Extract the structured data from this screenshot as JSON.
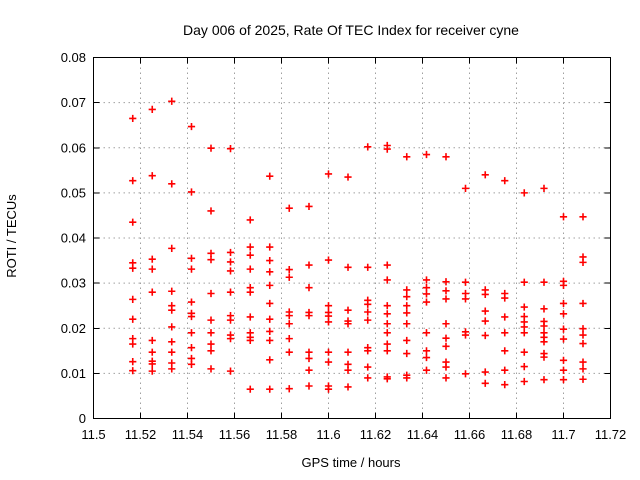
{
  "page": {
    "background": "#ffffff"
  },
  "chart_data": {
    "type": "scatter",
    "title": "Day 006 of 2025, Rate Of TEC Index for receiver cyne",
    "xlabel": "GPS time / hours",
    "ylabel": "ROTI / TECUs",
    "xlim": [
      11.5,
      11.72
    ],
    "ylim": [
      0,
      0.08
    ],
    "xticks": [
      11.5,
      11.52,
      11.54,
      11.56,
      11.58,
      11.6,
      11.62,
      11.64,
      11.66,
      11.68,
      11.7,
      11.72
    ],
    "xtick_labels": [
      "11.5",
      "11.52",
      "11.54",
      "11.56",
      "11.58",
      "11.6",
      "11.62",
      "11.64",
      "11.66",
      "11.68",
      "11.7",
      "11.72"
    ],
    "yticks": [
      0,
      0.01,
      0.02,
      0.03,
      0.04,
      0.05,
      0.06,
      0.07,
      0.08
    ],
    "ytick_labels": [
      "0",
      "0.01",
      "0.02",
      "0.03",
      "0.04",
      "0.05",
      "0.06",
      "0.07",
      "0.08"
    ],
    "grid": true,
    "legend": "none",
    "marker": "plus",
    "colors": {
      "marker": "#ff0000",
      "grid": "#a0a0a0",
      "axis": "#000000",
      "text": "#000000",
      "background": "#ffffff"
    },
    "series": [
      {
        "name": "ROTI",
        "points": [
          [
            11.5167,
            0.0665
          ],
          [
            11.5167,
            0.0527
          ],
          [
            11.5167,
            0.0435
          ],
          [
            11.5167,
            0.0345
          ],
          [
            11.5167,
            0.0333
          ],
          [
            11.5167,
            0.0264
          ],
          [
            11.5167,
            0.022
          ],
          [
            11.5167,
            0.0177
          ],
          [
            11.5167,
            0.0165
          ],
          [
            11.5167,
            0.0126
          ],
          [
            11.5167,
            0.0106
          ],
          [
            11.525,
            0.0685
          ],
          [
            11.525,
            0.0538
          ],
          [
            11.525,
            0.0353
          ],
          [
            11.525,
            0.0331
          ],
          [
            11.525,
            0.028
          ],
          [
            11.525,
            0.0173
          ],
          [
            11.525,
            0.0147
          ],
          [
            11.525,
            0.0127
          ],
          [
            11.525,
            0.0121
          ],
          [
            11.525,
            0.0105
          ],
          [
            11.5333,
            0.0703
          ],
          [
            11.5333,
            0.052
          ],
          [
            11.5333,
            0.0377
          ],
          [
            11.5333,
            0.0282
          ],
          [
            11.5333,
            0.025
          ],
          [
            11.5333,
            0.024
          ],
          [
            11.5333,
            0.0203
          ],
          [
            11.5333,
            0.017
          ],
          [
            11.5333,
            0.0147
          ],
          [
            11.5333,
            0.0123
          ],
          [
            11.5333,
            0.011
          ],
          [
            11.5417,
            0.0647
          ],
          [
            11.5417,
            0.0502
          ],
          [
            11.5417,
            0.0355
          ],
          [
            11.5417,
            0.0331
          ],
          [
            11.5417,
            0.0258
          ],
          [
            11.5417,
            0.0233
          ],
          [
            11.5417,
            0.0226
          ],
          [
            11.5417,
            0.019
          ],
          [
            11.5417,
            0.0157
          ],
          [
            11.5417,
            0.0133
          ],
          [
            11.5417,
            0.012
          ],
          [
            11.55,
            0.0599
          ],
          [
            11.55,
            0.046
          ],
          [
            11.55,
            0.0366
          ],
          [
            11.55,
            0.0352
          ],
          [
            11.55,
            0.0277
          ],
          [
            11.55,
            0.0218
          ],
          [
            11.55,
            0.019
          ],
          [
            11.55,
            0.0165
          ],
          [
            11.55,
            0.015
          ],
          [
            11.55,
            0.011
          ],
          [
            11.5583,
            0.0598
          ],
          [
            11.5583,
            0.0368
          ],
          [
            11.5583,
            0.0347
          ],
          [
            11.5583,
            0.0327
          ],
          [
            11.5583,
            0.028
          ],
          [
            11.5583,
            0.0228
          ],
          [
            11.5583,
            0.0218
          ],
          [
            11.5583,
            0.0185
          ],
          [
            11.5583,
            0.0177
          ],
          [
            11.5583,
            0.0105
          ],
          [
            11.5667,
            0.044
          ],
          [
            11.5667,
            0.038
          ],
          [
            11.5667,
            0.0362
          ],
          [
            11.5667,
            0.0331
          ],
          [
            11.5667,
            0.029
          ],
          [
            11.5667,
            0.028
          ],
          [
            11.5667,
            0.0225
          ],
          [
            11.5667,
            0.019
          ],
          [
            11.5667,
            0.018
          ],
          [
            11.5667,
            0.0173
          ],
          [
            11.5667,
            0.0065
          ],
          [
            11.575,
            0.0537
          ],
          [
            11.575,
            0.038
          ],
          [
            11.575,
            0.035
          ],
          [
            11.575,
            0.0325
          ],
          [
            11.575,
            0.0295
          ],
          [
            11.575,
            0.0255
          ],
          [
            11.575,
            0.022
          ],
          [
            11.575,
            0.0193
          ],
          [
            11.575,
            0.0173
          ],
          [
            11.575,
            0.013
          ],
          [
            11.575,
            0.0065
          ],
          [
            11.5833,
            0.0466
          ],
          [
            11.5833,
            0.033
          ],
          [
            11.5833,
            0.0313
          ],
          [
            11.5833,
            0.0236
          ],
          [
            11.5833,
            0.0228
          ],
          [
            11.5833,
            0.021
          ],
          [
            11.5833,
            0.0177
          ],
          [
            11.5833,
            0.0147
          ],
          [
            11.5833,
            0.0066
          ],
          [
            11.5917,
            0.047
          ],
          [
            11.5917,
            0.034
          ],
          [
            11.5917,
            0.029
          ],
          [
            11.5917,
            0.0235
          ],
          [
            11.5917,
            0.0228
          ],
          [
            11.5917,
            0.0147
          ],
          [
            11.5917,
            0.0133
          ],
          [
            11.5917,
            0.0107
          ],
          [
            11.5917,
            0.0072
          ],
          [
            11.6,
            0.0542
          ],
          [
            11.6,
            0.0351
          ],
          [
            11.6,
            0.025
          ],
          [
            11.6,
            0.0235
          ],
          [
            11.6,
            0.0227
          ],
          [
            11.6,
            0.0214
          ],
          [
            11.6,
            0.0147
          ],
          [
            11.6,
            0.0125
          ],
          [
            11.6,
            0.0072
          ],
          [
            11.6,
            0.0065
          ],
          [
            11.6083,
            0.0535
          ],
          [
            11.6083,
            0.0335
          ],
          [
            11.6083,
            0.024
          ],
          [
            11.6083,
            0.0216
          ],
          [
            11.6083,
            0.021
          ],
          [
            11.6083,
            0.0147
          ],
          [
            11.6083,
            0.012
          ],
          [
            11.6083,
            0.0107
          ],
          [
            11.6083,
            0.007
          ],
          [
            11.6167,
            0.0602
          ],
          [
            11.6167,
            0.0335
          ],
          [
            11.6167,
            0.0262
          ],
          [
            11.6167,
            0.0253
          ],
          [
            11.6167,
            0.0236
          ],
          [
            11.6167,
            0.0218
          ],
          [
            11.6167,
            0.0157
          ],
          [
            11.6167,
            0.015
          ],
          [
            11.6167,
            0.0114
          ],
          [
            11.6167,
            0.009
          ],
          [
            11.625,
            0.0605
          ],
          [
            11.625,
            0.0597
          ],
          [
            11.625,
            0.034
          ],
          [
            11.625,
            0.0307
          ],
          [
            11.625,
            0.025
          ],
          [
            11.625,
            0.0232
          ],
          [
            11.625,
            0.021
          ],
          [
            11.625,
            0.019
          ],
          [
            11.625,
            0.0165
          ],
          [
            11.625,
            0.015
          ],
          [
            11.625,
            0.0092
          ],
          [
            11.625,
            0.0088
          ],
          [
            11.6333,
            0.058
          ],
          [
            11.6333,
            0.0285
          ],
          [
            11.6333,
            0.027
          ],
          [
            11.6333,
            0.025
          ],
          [
            11.6333,
            0.0234
          ],
          [
            11.6333,
            0.021
          ],
          [
            11.6333,
            0.0173
          ],
          [
            11.6333,
            0.0144
          ],
          [
            11.6333,
            0.0096
          ],
          [
            11.6333,
            0.009
          ],
          [
            11.6417,
            0.0585
          ],
          [
            11.6417,
            0.0307
          ],
          [
            11.6417,
            0.029
          ],
          [
            11.6417,
            0.0276
          ],
          [
            11.6417,
            0.0258
          ],
          [
            11.6417,
            0.019
          ],
          [
            11.6417,
            0.015
          ],
          [
            11.6417,
            0.0135
          ],
          [
            11.6417,
            0.0107
          ],
          [
            11.65,
            0.058
          ],
          [
            11.65,
            0.0303
          ],
          [
            11.65,
            0.0283
          ],
          [
            11.65,
            0.0265
          ],
          [
            11.65,
            0.021
          ],
          [
            11.65,
            0.0178
          ],
          [
            11.65,
            0.016
          ],
          [
            11.65,
            0.0125
          ],
          [
            11.65,
            0.0114
          ],
          [
            11.65,
            0.009
          ],
          [
            11.6583,
            0.051
          ],
          [
            11.6583,
            0.0302
          ],
          [
            11.6583,
            0.0277
          ],
          [
            11.6583,
            0.0265
          ],
          [
            11.6583,
            0.0192
          ],
          [
            11.6583,
            0.0185
          ],
          [
            11.6583,
            0.0099
          ],
          [
            11.6667,
            0.054
          ],
          [
            11.6667,
            0.0285
          ],
          [
            11.6667,
            0.0275
          ],
          [
            11.6667,
            0.0238
          ],
          [
            11.6667,
            0.0216
          ],
          [
            11.6667,
            0.0184
          ],
          [
            11.6667,
            0.0103
          ],
          [
            11.6667,
            0.0078
          ],
          [
            11.675,
            0.0527
          ],
          [
            11.675,
            0.0277
          ],
          [
            11.675,
            0.0267
          ],
          [
            11.675,
            0.0225
          ],
          [
            11.675,
            0.019
          ],
          [
            11.675,
            0.015
          ],
          [
            11.675,
            0.0107
          ],
          [
            11.675,
            0.0075
          ],
          [
            11.6833,
            0.05
          ],
          [
            11.6833,
            0.0302
          ],
          [
            11.6833,
            0.0247
          ],
          [
            11.6833,
            0.0226
          ],
          [
            11.6833,
            0.0214
          ],
          [
            11.6833,
            0.0203
          ],
          [
            11.6833,
            0.019
          ],
          [
            11.6833,
            0.0147
          ],
          [
            11.6833,
            0.0115
          ],
          [
            11.6833,
            0.0082
          ],
          [
            11.6917,
            0.051
          ],
          [
            11.6917,
            0.0302
          ],
          [
            11.6917,
            0.0243
          ],
          [
            11.6917,
            0.0215
          ],
          [
            11.6917,
            0.0205
          ],
          [
            11.6917,
            0.019
          ],
          [
            11.6917,
            0.018
          ],
          [
            11.6917,
            0.017
          ],
          [
            11.6917,
            0.0144
          ],
          [
            11.6917,
            0.0136
          ],
          [
            11.6917,
            0.0086
          ],
          [
            11.7,
            0.0447
          ],
          [
            11.7,
            0.0304
          ],
          [
            11.7,
            0.0295
          ],
          [
            11.7,
            0.0255
          ],
          [
            11.7,
            0.0232
          ],
          [
            11.7,
            0.0198
          ],
          [
            11.7,
            0.0176
          ],
          [
            11.7,
            0.0129
          ],
          [
            11.7,
            0.0107
          ],
          [
            11.7,
            0.0086
          ],
          [
            11.7083,
            0.0447
          ],
          [
            11.7083,
            0.0358
          ],
          [
            11.7083,
            0.0346
          ],
          [
            11.7083,
            0.0255
          ],
          [
            11.7083,
            0.0199
          ],
          [
            11.7083,
            0.0185
          ],
          [
            11.7083,
            0.0166
          ],
          [
            11.7083,
            0.0125
          ],
          [
            11.7083,
            0.011
          ],
          [
            11.7083,
            0.0087
          ]
        ]
      }
    ]
  }
}
